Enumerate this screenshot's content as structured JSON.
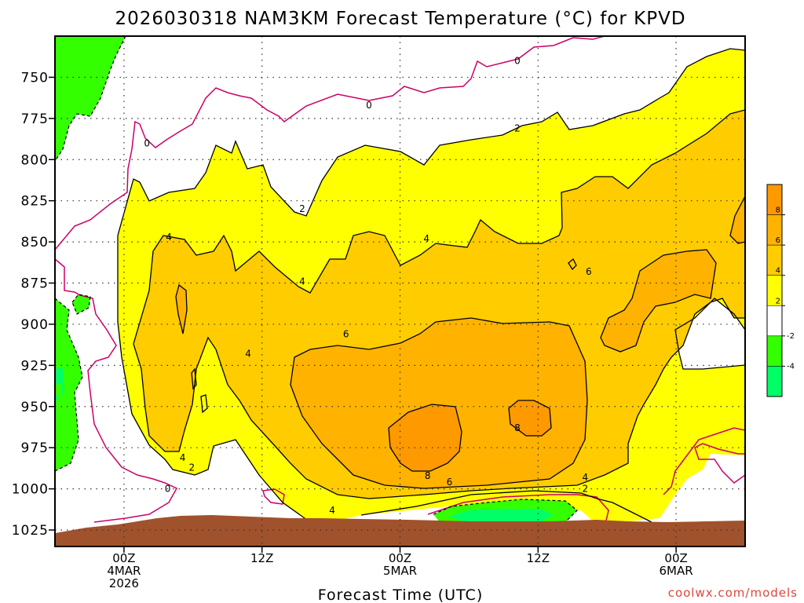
{
  "chart_data": {
    "type": "heatmap",
    "title": "2026030318 NAM3KM Forecast Temperature (°C) for KPVD",
    "xlabel": "Forecast Time (UTC)",
    "ylabel": "",
    "credit": "coolwx.com/models",
    "y_ticks": [
      "750",
      "775",
      "800",
      "825",
      "850",
      "875",
      "900",
      "925",
      "950",
      "975",
      "1000",
      "1025"
    ],
    "x_ticks": [
      {
        "line1": "00Z",
        "line2": "4MAR",
        "line3": "2026",
        "hour": 0
      },
      {
        "line1": "12Z",
        "line2": "",
        "line3": "",
        "hour": 12
      },
      {
        "line1": "00Z",
        "line2": "5MAR",
        "line3": "",
        "hour": 24
      },
      {
        "line1": "12Z",
        "line2": "",
        "line3": "",
        "hour": 36
      },
      {
        "line1": "00Z",
        "line2": "6MAR",
        "line3": "",
        "hour": 48
      }
    ],
    "xlim": [
      -6,
      54
    ],
    "ylim": [
      1035,
      725
    ],
    "grid": true,
    "colorbar": {
      "labels": [
        "8",
        "6",
        "4",
        "2",
        "-2",
        "-4"
      ],
      "bands": [
        {
          "from": 8,
          "to": 10,
          "color": "#ff9900"
        },
        {
          "from": 6,
          "to": 8,
          "color": "#ffb300"
        },
        {
          "from": 4,
          "to": 6,
          "color": "#ffcc00"
        },
        {
          "from": 2,
          "to": 4,
          "color": "#ffff00"
        },
        {
          "from": -2,
          "to": 2,
          "color": "#ffffff"
        },
        {
          "from": -4,
          "to": -2,
          "color": "#33ff00"
        },
        {
          "from": -6,
          "to": -4,
          "color": "#00ff66"
        }
      ]
    },
    "contour_labels": [
      {
        "text": "0",
        "hour": 34.2,
        "pressure": 740
      },
      {
        "text": "0",
        "hour": 21.3,
        "pressure": 767
      },
      {
        "text": "0",
        "hour": 2,
        "pressure": 790
      },
      {
        "text": "2",
        "hour": 34.2,
        "pressure": 781
      },
      {
        "text": "2",
        "hour": 15.5,
        "pressure": 830
      },
      {
        "text": "4",
        "hour": 3.9,
        "pressure": 847
      },
      {
        "text": "4",
        "hour": 26.3,
        "pressure": 848
      },
      {
        "text": "4",
        "hour": 15.5,
        "pressure": 874
      },
      {
        "text": "6",
        "hour": 40.4,
        "pressure": 868
      },
      {
        "text": "6",
        "hour": 19.3,
        "pressure": 906
      },
      {
        "text": "4",
        "hour": 10.8,
        "pressure": 918
      },
      {
        "text": "8",
        "hour": 34.2,
        "pressure": 963
      },
      {
        "text": "8",
        "hour": 26.4,
        "pressure": 992
      },
      {
        "text": "6",
        "hour": 28.3,
        "pressure": 996
      },
      {
        "text": "4",
        "hour": 5.1,
        "pressure": 981
      },
      {
        "text": "2",
        "hour": 5.9,
        "pressure": 987
      },
      {
        "text": "0",
        "hour": 3.8,
        "pressure": 1000
      },
      {
        "text": "4",
        "hour": 40.1,
        "pressure": 993
      },
      {
        "text": "2",
        "hour": 40.1,
        "pressure": 1000
      },
      {
        "text": "4",
        "hour": 18.1,
        "pressure": 1013
      }
    ]
  }
}
